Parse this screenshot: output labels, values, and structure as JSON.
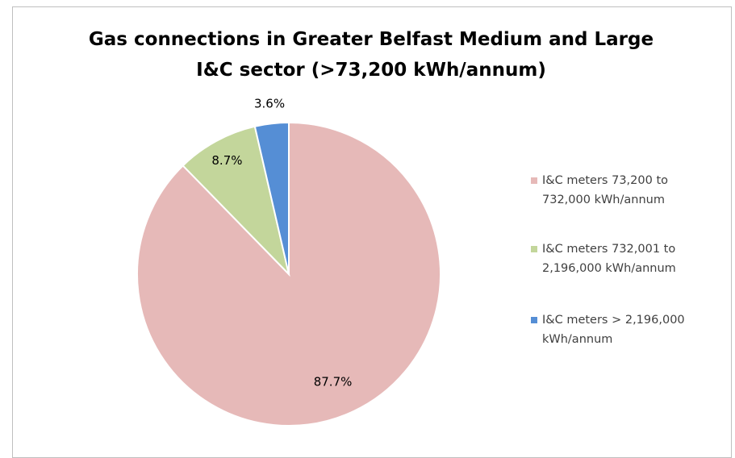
{
  "chart_data": {
    "type": "pie",
    "title": "Gas connections in Greater Belfast Medium and Large I&C sector (>73,200 kWh/annum)",
    "categories": [
      "I&C meters 73,200 to 732,000 kWh/annum",
      "I&C meters 732,001 to 2,196,000 kWh/annum",
      "I&C meters > 2,196,000 kWh/annum"
    ],
    "values": [
      87.7,
      8.7,
      3.6
    ],
    "value_labels": [
      "87.7%",
      "8.7%",
      "3.6%"
    ],
    "colors": [
      "#e6b9b8",
      "#c3d69b",
      "#558ed5"
    ],
    "legend": "right"
  }
}
